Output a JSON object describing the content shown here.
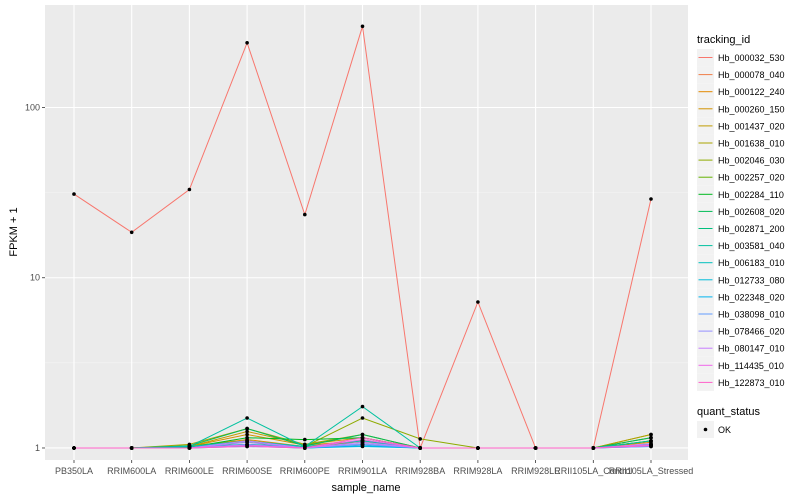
{
  "chart_data": {
    "type": "line",
    "xlabel": "sample_name",
    "ylabel": "FPKM + 1",
    "y_scale": "log10",
    "ylim": [
      0.85,
      400
    ],
    "y_ticks": [
      {
        "value": 1,
        "label": "1"
      },
      {
        "value": 10,
        "label": "10"
      },
      {
        "value": 100,
        "label": "100"
      }
    ],
    "grid": true,
    "legend_placement": "right",
    "categories": [
      "PB350LA",
      "RRIM600LA",
      "RRIM600LE",
      "RRIM600SE",
      "RRIM600PE",
      "RRIM901LA",
      "RRIM928BA",
      "RRIM928LA",
      "RRIM928LE",
      "RRII105LA_Control",
      "RRII105LA_Stressed"
    ],
    "series": [
      {
        "name": "Hb_000032_530",
        "color": "#F8766D",
        "values": [
          31,
          18.5,
          33,
          240,
          23.5,
          300,
          1.0,
          7.2,
          1.0,
          1.0,
          29
        ]
      },
      {
        "name": "Hb_000078_040",
        "color": "#EF7F49",
        "values": [
          1,
          1,
          1,
          1.05,
          1,
          1.05,
          1,
          1,
          1,
          1,
          1.05
        ]
      },
      {
        "name": "Hb_000122_240",
        "color": "#E38900",
        "values": [
          1,
          1,
          1.02,
          1.12,
          1.02,
          1.1,
          1,
          1,
          1,
          1,
          1.08
        ]
      },
      {
        "name": "Hb_000260_150",
        "color": "#D39200",
        "values": [
          1,
          1,
          1.02,
          1.2,
          1.04,
          1.1,
          1,
          1,
          1,
          1,
          1.2
        ]
      },
      {
        "name": "Hb_001437_020",
        "color": "#C09B00",
        "values": [
          1,
          1,
          1.02,
          1.25,
          1.05,
          1.15,
          1,
          1,
          1,
          1,
          1.15
        ]
      },
      {
        "name": "Hb_001638_010",
        "color": "#A9A400",
        "values": [
          1,
          1,
          1.05,
          1.3,
          1.05,
          1.2,
          1,
          1,
          1,
          1,
          1.2
        ]
      },
      {
        "name": "Hb_002046_030",
        "color": "#8EAB00",
        "values": [
          1,
          1,
          1.03,
          1.1,
          1.02,
          1.5,
          1.13,
          1,
          1,
          1,
          1.1
        ]
      },
      {
        "name": "Hb_002257_020",
        "color": "#64B200",
        "values": [
          1,
          1,
          1.02,
          1.08,
          1.02,
          1.08,
          1,
          1,
          1,
          1,
          1.05
        ]
      },
      {
        "name": "Hb_002284_110",
        "color": "#00B81F",
        "values": [
          1,
          1,
          1.01,
          1.15,
          1.12,
          1.15,
          1,
          1,
          1,
          1,
          1.1
        ]
      },
      {
        "name": "Hb_002608_020",
        "color": "#00BC56",
        "values": [
          1,
          1,
          1.03,
          1.3,
          1.03,
          1.2,
          1,
          1,
          1,
          1,
          1.15
        ]
      },
      {
        "name": "Hb_002871_200",
        "color": "#00BF7D",
        "values": [
          1,
          1,
          1.02,
          1.05,
          1.02,
          1.05,
          1,
          1,
          1,
          1,
          1.05
        ]
      },
      {
        "name": "Hb_003581_040",
        "color": "#00C19F",
        "values": [
          1,
          1,
          1.02,
          1.5,
          1.02,
          1.75,
          1,
          1,
          1,
          1,
          1.1
        ]
      },
      {
        "name": "Hb_006183_010",
        "color": "#00C0BE",
        "values": [
          1,
          1,
          1.02,
          1.1,
          1.02,
          1.1,
          1,
          1,
          1,
          1,
          1.05
        ]
      },
      {
        "name": "Hb_012733_080",
        "color": "#00BCDA",
        "values": [
          1,
          1,
          1,
          1.02,
          1,
          1.02,
          1,
          1,
          1,
          1,
          1.02
        ]
      },
      {
        "name": "Hb_022348_020",
        "color": "#00B4EF",
        "values": [
          1,
          1,
          1,
          1.03,
          1,
          1.03,
          1,
          1,
          1,
          1,
          1.03
        ]
      },
      {
        "name": "Hb_038098_010",
        "color": "#619CFF",
        "values": [
          1,
          1,
          1,
          1.05,
          1,
          1.05,
          1,
          1,
          1,
          1,
          1.02
        ]
      },
      {
        "name": "Hb_078466_020",
        "color": "#9590FF",
        "values": [
          1,
          1,
          1,
          1.08,
          1,
          1.06,
          1,
          1,
          1,
          1,
          1.04
        ]
      },
      {
        "name": "Hb_080147_010",
        "color": "#C77CFF",
        "values": [
          1,
          1,
          1,
          1.1,
          1,
          1.08,
          1,
          1,
          1,
          1,
          1.06
        ]
      },
      {
        "name": "Hb_114435_010",
        "color": "#EF67EB",
        "values": [
          1,
          1,
          1,
          1.04,
          1,
          1.12,
          1,
          1,
          1,
          1,
          1.04
        ]
      },
      {
        "name": "Hb_122873_010",
        "color": "#FF61C9",
        "values": [
          1,
          1,
          1,
          1.02,
          1,
          1.15,
          1,
          1,
          1,
          1,
          1.03
        ]
      }
    ]
  },
  "legend": {
    "title": "tracking_id",
    "quant_status_title": "quant_status",
    "quant_status_label": "OK",
    "colors": {
      "panel": "#EBEBEB",
      "grid_major": "#FFFFFF",
      "point": "#000000"
    }
  }
}
